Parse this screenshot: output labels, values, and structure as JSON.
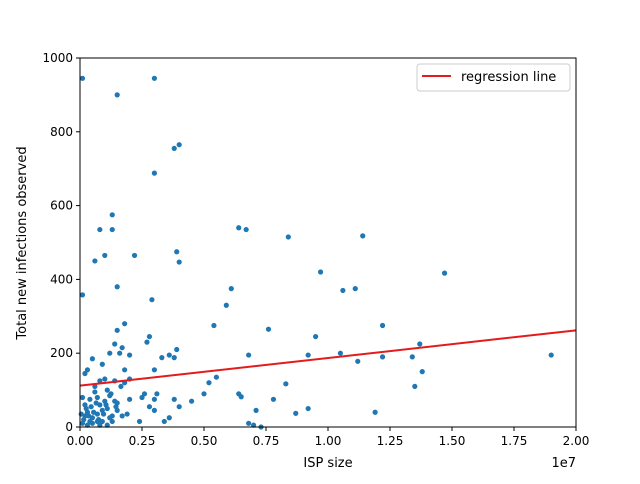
{
  "chart_data": {
    "type": "scatter",
    "title": "",
    "xlabel": "ISP size",
    "ylabel": "Total new infections observed",
    "x_offset_text": "1e7",
    "xlim": [
      0,
      20000000
    ],
    "ylim": [
      0,
      1000
    ],
    "xticks": [
      0,
      2500000,
      5000000,
      7500000,
      10000000,
      12500000,
      15000000,
      17500000,
      20000000
    ],
    "xtick_labels": [
      "0.00",
      "0.25",
      "0.50",
      "0.75",
      "1.00",
      "1.25",
      "1.50",
      "1.75",
      "2.00"
    ],
    "yticks": [
      0,
      200,
      400,
      600,
      800,
      1000
    ],
    "ytick_labels": [
      "0",
      "200",
      "400",
      "600",
      "800",
      "1000"
    ],
    "grid": false,
    "legend": {
      "placement": "top-right",
      "entries": [
        {
          "label": "regression line",
          "color": "#e41a1c"
        }
      ]
    },
    "colors": {
      "points": "#1f77b4",
      "regression": "#e41a1c"
    },
    "regression": {
      "x": [
        0,
        20000000
      ],
      "y": [
        112,
        262
      ]
    },
    "series": [
      {
        "name": "",
        "points": [
          [
            100000,
            945
          ],
          [
            1500000,
            900
          ],
          [
            3000000,
            945
          ],
          [
            3800000,
            755
          ],
          [
            4000000,
            765
          ],
          [
            3000000,
            688
          ],
          [
            1300000,
            575
          ],
          [
            800000,
            535
          ],
          [
            1300000,
            535
          ],
          [
            1000000,
            465
          ],
          [
            2200000,
            465
          ],
          [
            600000,
            450
          ],
          [
            100000,
            358
          ],
          [
            1500000,
            380
          ],
          [
            2900000,
            345
          ],
          [
            6400000,
            540
          ],
          [
            6700000,
            535
          ],
          [
            8400000,
            515
          ],
          [
            11400000,
            518
          ],
          [
            3900000,
            475
          ],
          [
            4000000,
            447
          ],
          [
            9700000,
            420
          ],
          [
            14700000,
            417
          ],
          [
            6100000,
            375
          ],
          [
            10600000,
            370
          ],
          [
            11100000,
            375
          ],
          [
            5900000,
            330
          ],
          [
            1800000,
            280
          ],
          [
            1500000,
            262
          ],
          [
            5400000,
            275
          ],
          [
            7600000,
            265
          ],
          [
            12200000,
            275
          ],
          [
            2800000,
            245
          ],
          [
            3900000,
            210
          ],
          [
            9500000,
            245
          ],
          [
            19000000,
            195
          ],
          [
            13700000,
            225
          ],
          [
            13800000,
            150
          ],
          [
            13500000,
            110
          ],
          [
            13400000,
            190
          ],
          [
            12200000,
            190
          ],
          [
            11200000,
            178
          ],
          [
            10500000,
            200
          ],
          [
            9200000,
            195
          ],
          [
            8300000,
            117
          ],
          [
            7800000,
            75
          ],
          [
            6800000,
            195
          ],
          [
            6500000,
            82
          ],
          [
            6400000,
            90
          ],
          [
            7100000,
            45
          ],
          [
            8700000,
            37
          ],
          [
            9200000,
            50
          ],
          [
            11900000,
            40
          ],
          [
            3800000,
            188
          ],
          [
            3600000,
            195
          ],
          [
            3300000,
            188
          ],
          [
            3000000,
            155
          ],
          [
            2700000,
            230
          ],
          [
            2000000,
            195
          ],
          [
            1800000,
            155
          ],
          [
            1600000,
            200
          ],
          [
            1400000,
            225
          ],
          [
            1700000,
            215
          ],
          [
            1200000,
            200
          ],
          [
            900000,
            170
          ],
          [
            500000,
            185
          ],
          [
            300000,
            155
          ],
          [
            200000,
            145
          ],
          [
            600000,
            110
          ],
          [
            800000,
            125
          ],
          [
            1000000,
            130
          ],
          [
            1400000,
            125
          ],
          [
            1800000,
            120
          ],
          [
            2000000,
            130
          ],
          [
            2500000,
            80
          ],
          [
            2600000,
            90
          ],
          [
            3000000,
            75
          ],
          [
            3100000,
            90
          ],
          [
            3800000,
            75
          ],
          [
            4500000,
            70
          ],
          [
            5000000,
            90
          ],
          [
            5200000,
            120
          ],
          [
            5500000,
            135
          ],
          [
            2800000,
            55
          ],
          [
            3000000,
            45
          ],
          [
            3400000,
            15
          ],
          [
            3600000,
            25
          ],
          [
            4000000,
            55
          ],
          [
            6800000,
            10
          ],
          [
            7000000,
            5
          ],
          [
            7300000,
            0
          ],
          [
            2400000,
            15
          ],
          [
            2000000,
            75
          ],
          [
            1500000,
            65
          ],
          [
            1200000,
            85
          ],
          [
            1000000,
            70
          ],
          [
            800000,
            60
          ],
          [
            400000,
            75
          ],
          [
            200000,
            60
          ],
          [
            100000,
            80
          ],
          [
            50000,
            35
          ],
          [
            150000,
            20
          ],
          [
            300000,
            40
          ],
          [
            500000,
            25
          ],
          [
            700000,
            35
          ],
          [
            900000,
            15
          ],
          [
            1100000,
            5
          ],
          [
            1300000,
            30
          ],
          [
            1500000,
            45
          ],
          [
            1700000,
            30
          ],
          [
            1900000,
            35
          ],
          [
            300000,
            5
          ],
          [
            500000,
            10
          ],
          [
            700000,
            15
          ],
          [
            900000,
            45
          ],
          [
            1100000,
            50
          ],
          [
            1300000,
            15
          ],
          [
            600000,
            95
          ],
          [
            1100000,
            100
          ],
          [
            1400000,
            70
          ],
          [
            700000,
            80
          ],
          [
            400000,
            15
          ],
          [
            200000,
            30
          ],
          [
            100000,
            10
          ],
          [
            800000,
            5
          ],
          [
            1200000,
            25
          ],
          [
            250000,
            50
          ],
          [
            450000,
            55
          ],
          [
            650000,
            65
          ],
          [
            350000,
            30
          ],
          [
            550000,
            40
          ],
          [
            750000,
            20
          ],
          [
            950000,
            35
          ],
          [
            1050000,
            60
          ],
          [
            1250000,
            90
          ],
          [
            1450000,
            55
          ],
          [
            1650000,
            110
          ]
        ]
      }
    ]
  }
}
